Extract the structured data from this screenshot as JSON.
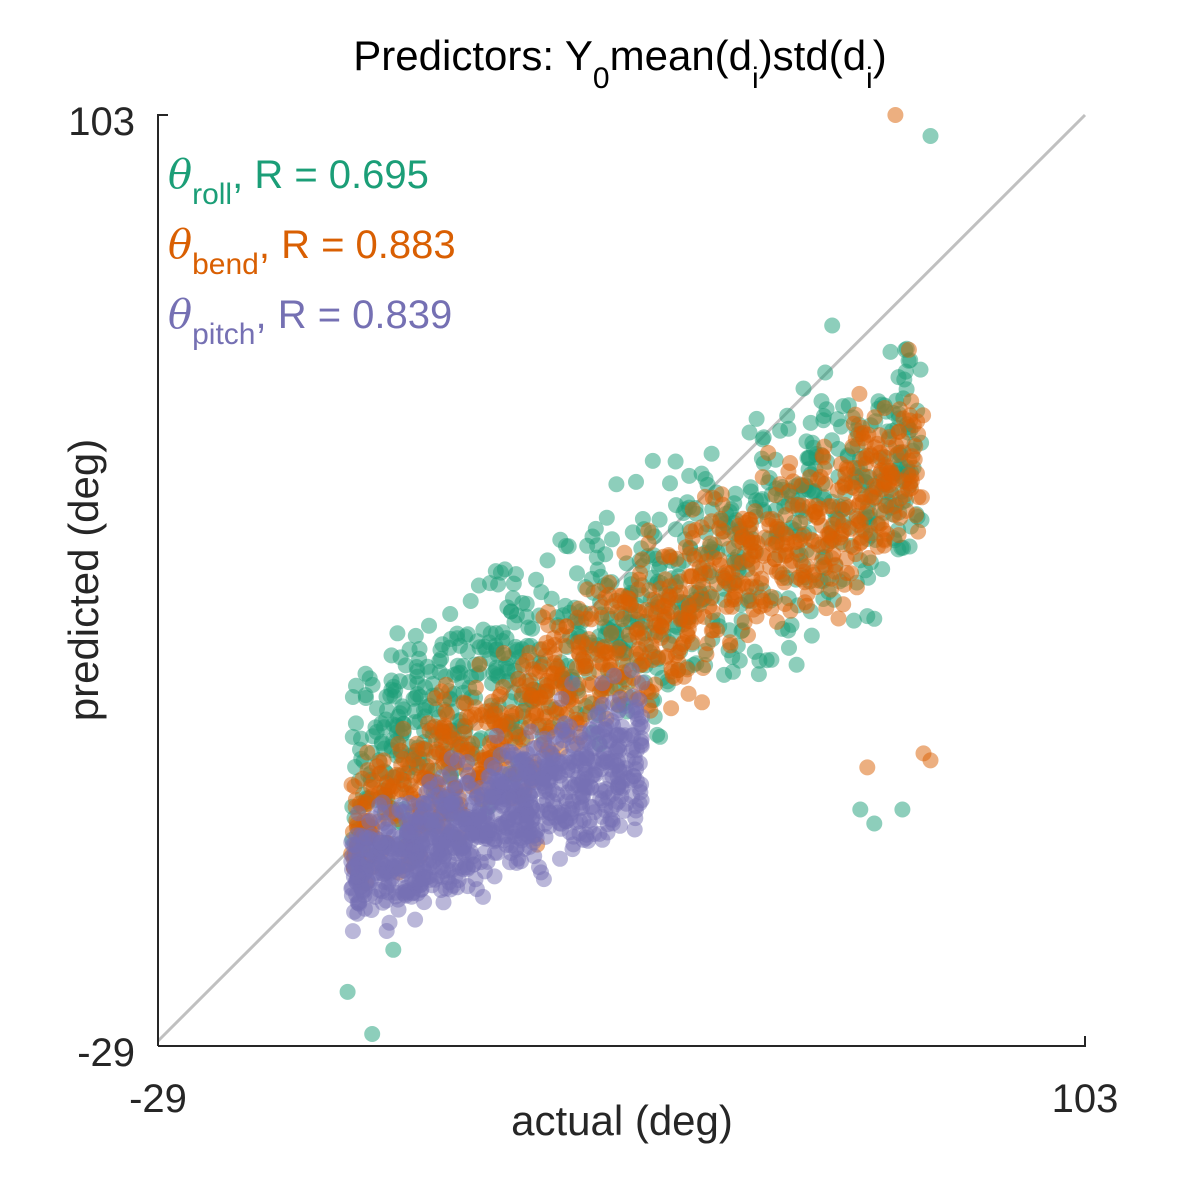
{
  "chart_data": {
    "type": "scatter",
    "title": {
      "prefix": "Predictors: Y",
      "sub1": "0",
      "mid1": "mean(d",
      "sub2": "i",
      "mid2": ")std(d",
      "sub3": "i",
      "suffix": ")"
    },
    "xlabel": "actual (deg)",
    "ylabel": "predicted (deg)",
    "xlim": [
      -29,
      103
    ],
    "ylim": [
      -29,
      103
    ],
    "x_tick_labels": [
      "-29",
      "103"
    ],
    "y_tick_labels": [
      "-29",
      "103"
    ],
    "reference_line": {
      "from": [
        -29,
        -29
      ],
      "to": [
        103,
        103
      ],
      "color": "#c0c0c0"
    },
    "legend_position": "top-left",
    "series": [
      {
        "name": "roll",
        "symbol": "θ",
        "stat_text": ", R = 0.695",
        "color": "#1b9e77",
        "R": 0.695,
        "x_range": [
          -1.5,
          80
        ],
        "y_min_line": {
          "slope": 0.45,
          "intercept": 12
        },
        "y_max_line": {
          "slope": 0.62,
          "intercept": 41
        },
        "outliers": [
          [
            -2,
            -22
          ],
          [
            1.5,
            -28
          ],
          [
            4.5,
            -16
          ],
          [
            67,
            73
          ],
          [
            81,
            100
          ],
          [
            73,
            2
          ],
          [
            77,
            4
          ],
          [
            71,
            4
          ]
        ]
      },
      {
        "name": "bend",
        "symbol": "θ",
        "stat_text": ", R = 0.883",
        "color": "#d95f02",
        "R": 0.883,
        "x_range": [
          -1.5,
          80
        ],
        "y_min_line": {
          "slope": 0.6,
          "intercept": 8
        },
        "y_max_line": {
          "slope": 0.72,
          "intercept": 27
        },
        "outliers": [
          [
            76,
            103
          ],
          [
            80,
            12
          ],
          [
            81,
            11
          ],
          [
            72,
            10
          ],
          [
            25,
            -1
          ],
          [
            7,
            -1
          ],
          [
            14,
            0
          ]
        ]
      },
      {
        "name": "pitch",
        "symbol": "θ",
        "stat_text": ", R = 0.839",
        "color": "#7570b3",
        "R": 0.839,
        "x_range": [
          -1.5,
          40
        ],
        "y_min_line": {
          "slope": 0.35,
          "intercept": 3
        },
        "y_max_line": {
          "slope": 0.55,
          "intercept": 16
        },
        "outliers": [
          [
            22,
            1
          ],
          [
            10,
            2
          ],
          [
            3,
            5
          ],
          [
            30,
            22
          ]
        ]
      }
    ]
  }
}
